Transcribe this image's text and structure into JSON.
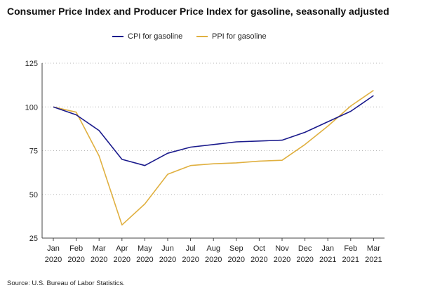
{
  "chart_data": {
    "type": "line",
    "title": "Consumer Price Index and Producer Price Index for gasoline, seasonally adjusted",
    "xlabel": "",
    "ylabel": "",
    "categories": [
      [
        "Jan",
        "2020"
      ],
      [
        "Feb",
        "2020"
      ],
      [
        "Mar",
        "2020"
      ],
      [
        "Apr",
        "2020"
      ],
      [
        "May",
        "2020"
      ],
      [
        "Jun",
        "2020"
      ],
      [
        "Jul",
        "2020"
      ],
      [
        "Aug",
        "2020"
      ],
      [
        "Sep",
        "2020"
      ],
      [
        "Oct",
        "2020"
      ],
      [
        "Nov",
        "2020"
      ],
      [
        "Dec",
        "2020"
      ],
      [
        "Jan",
        "2021"
      ],
      [
        "Feb",
        "2021"
      ],
      [
        "Mar",
        "2021"
      ]
    ],
    "ylim": [
      25,
      125
    ],
    "yticks": [
      25,
      50,
      75,
      100,
      125
    ],
    "grid": true,
    "legend_position": "top-center",
    "series": [
      {
        "name": "CPI for gasoline",
        "color": "#1a1a8c",
        "values": [
          100.0,
          95.5,
          86.5,
          70.0,
          66.5,
          73.5,
          77.0,
          78.5,
          80.0,
          80.5,
          81.0,
          85.5,
          91.5,
          97.5,
          106.5
        ]
      },
      {
        "name": "PPI for gasoline",
        "color": "#e0b040",
        "values": [
          100.0,
          97.0,
          72.0,
          32.5,
          44.5,
          61.5,
          66.5,
          67.5,
          68.0,
          69.0,
          69.5,
          78.5,
          89.0,
          100.5,
          109.5
        ]
      }
    ]
  },
  "source": "Source: U.S. Bureau of Labor Statistics."
}
